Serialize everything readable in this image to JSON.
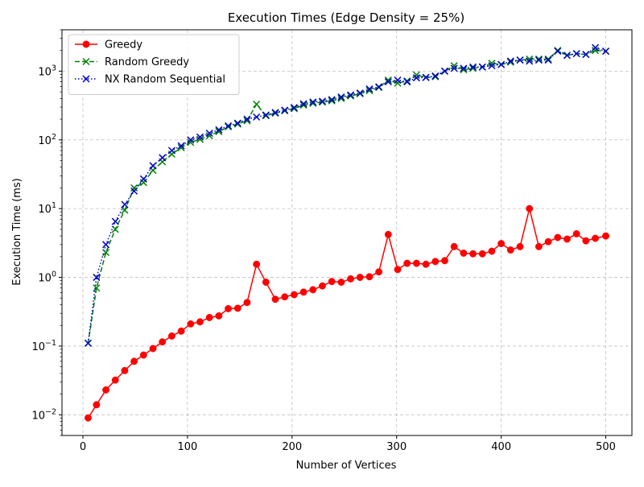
{
  "chart_data": {
    "type": "line",
    "title": "Execution Times (Edge Density = 25%)",
    "xlabel": "Number of Vertices",
    "ylabel": "Execution Time (ms)",
    "xlim": [
      -20,
      525
    ],
    "ylim": [
      0.005,
      4000
    ],
    "yscale": "log",
    "grid": true,
    "legend_position": "top-left",
    "xticks": [
      0,
      100,
      200,
      300,
      400,
      500
    ],
    "xtick_labels": [
      "0",
      "100",
      "200",
      "300",
      "400",
      "500"
    ],
    "yticks": [
      0.01,
      0.1,
      1,
      10,
      100,
      1000
    ],
    "ytick_labels": [
      {
        "base": "10",
        "exp": "−2"
      },
      {
        "base": "10",
        "exp": "−1"
      },
      {
        "base": "10",
        "exp": "0"
      },
      {
        "base": "10",
        "exp": "1"
      },
      {
        "base": "10",
        "exp": "2"
      },
      {
        "base": "10",
        "exp": "3"
      }
    ],
    "x": [
      5,
      13,
      22,
      31,
      40,
      49,
      58,
      67,
      76,
      85,
      94,
      103,
      112,
      121,
      130,
      139,
      148,
      157,
      166,
      175,
      184,
      193,
      202,
      211,
      220,
      229,
      238,
      247,
      256,
      265,
      274,
      283,
      292,
      301,
      310,
      319,
      328,
      337,
      346,
      355,
      364,
      373,
      382,
      391,
      400,
      409,
      418,
      427,
      436,
      445,
      454,
      463,
      472,
      481,
      490,
      500
    ],
    "series": [
      {
        "name": "Greedy",
        "color": "#ff0000",
        "line_style": "solid",
        "marker": "circle",
        "values": [
          0.009,
          0.014,
          0.023,
          0.032,
          0.044,
          0.06,
          0.074,
          0.092,
          0.115,
          0.14,
          0.165,
          0.21,
          0.225,
          0.26,
          0.275,
          0.35,
          0.355,
          0.43,
          1.55,
          0.85,
          0.48,
          0.52,
          0.56,
          0.61,
          0.66,
          0.75,
          0.87,
          0.85,
          0.95,
          1.0,
          1.02,
          1.2,
          4.2,
          1.3,
          1.6,
          1.6,
          1.55,
          1.7,
          1.75,
          2.8,
          2.25,
          2.2,
          2.2,
          2.4,
          3.1,
          2.5,
          2.8,
          10.0,
          2.8,
          3.3,
          3.8,
          3.6,
          4.3,
          3.4,
          3.7,
          4.0
        ]
      },
      {
        "name": "Random Greedy",
        "color": "#008000",
        "line_style": "dashed",
        "marker": "x",
        "values": [
          0.11,
          0.7,
          2.3,
          5.0,
          9.5,
          20,
          24,
          36,
          48,
          62,
          77,
          92,
          102,
          115,
          132,
          155,
          170,
          190,
          330,
          225,
          245,
          265,
          285,
          320,
          340,
          355,
          370,
          400,
          435,
          470,
          520,
          580,
          740,
          670,
          720,
          880,
          810,
          830,
          1000,
          1200,
          1050,
          1100,
          1150,
          1300,
          1250,
          1350,
          1450,
          1500,
          1500,
          1500,
          2000,
          1700,
          1800,
          1750,
          2000,
          1950
        ]
      },
      {
        "name": "NX Random Sequential",
        "color": "#0000cc",
        "line_style": "dotted",
        "marker": "x",
        "values": [
          0.11,
          1.0,
          3.0,
          6.5,
          11.5,
          18,
          27,
          42,
          55,
          70,
          82,
          100,
          110,
          125,
          140,
          160,
          175,
          200,
          215,
          230,
          250,
          270,
          295,
          335,
          355,
          365,
          385,
          420,
          450,
          480,
          550,
          590,
          700,
          740,
          700,
          800,
          810,
          850,
          1000,
          1100,
          1100,
          1150,
          1150,
          1200,
          1250,
          1400,
          1450,
          1400,
          1450,
          1450,
          1950,
          1700,
          1800,
          1750,
          2200,
          1950
        ]
      }
    ]
  }
}
